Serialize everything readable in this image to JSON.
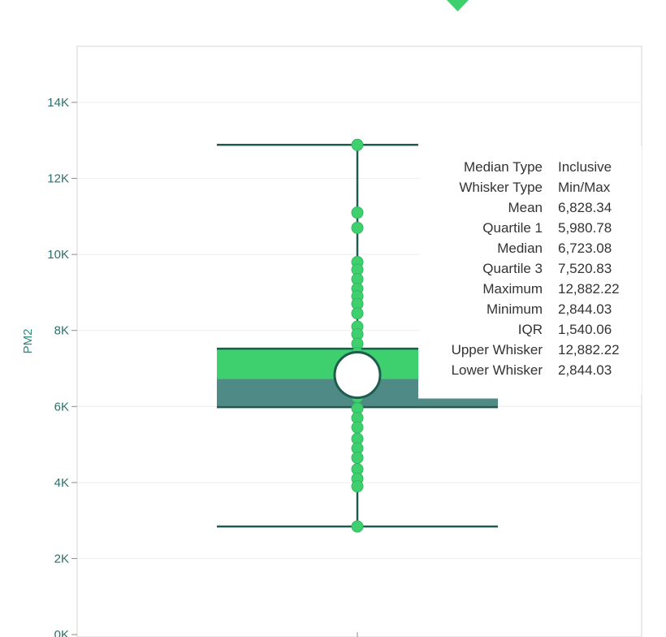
{
  "colors": {
    "accent_green": "#3ecf6e",
    "box_upper": "#3ecf6e",
    "box_lower": "#4f8a86",
    "stroke_dark": "#1f5c4f",
    "axis_text": "#2e6e6a",
    "gridline": "#eeeeee"
  },
  "chart_data": {
    "type": "box",
    "title": "",
    "ylabel": "PM2",
    "xlabel": "",
    "ylim": [
      0,
      15000
    ],
    "y_ticks": [
      0,
      2000,
      4000,
      6000,
      8000,
      10000,
      12000,
      14000
    ],
    "y_tick_labels": [
      "0K",
      "2K",
      "4K",
      "6K",
      "8K",
      "10K",
      "12K",
      "14K"
    ],
    "grid": true,
    "box": {
      "mean": 6828.34,
      "q1": 5980.78,
      "median": 6723.08,
      "q3": 7520.83,
      "max": 12882.22,
      "min": 2844.03,
      "iqr": 1540.06,
      "upper_whisker": 12882.22,
      "lower_whisker": 2844.03
    },
    "points": [
      12882.22,
      11100,
      10700,
      9800,
      9600,
      9350,
      9100,
      8900,
      8700,
      8450,
      8100,
      7900,
      7650,
      7400,
      7200,
      6950,
      6728.34,
      6500,
      6250,
      5950,
      5700,
      5450,
      5150,
      4900,
      4650,
      4350,
      4100,
      3900,
      2844.03
    ],
    "tooltip": {
      "rows": [
        {
          "label": "Median Type",
          "value": "Inclusive"
        },
        {
          "label": "Whisker Type",
          "value": "Min/Max"
        },
        {
          "label": "Mean",
          "value": "6,828.34"
        },
        {
          "label": "Quartile 1",
          "value": "5,980.78"
        },
        {
          "label": "Median",
          "value": "6,723.08"
        },
        {
          "label": "Quartile 3",
          "value": "7,520.83"
        },
        {
          "label": "Maximum",
          "value": "12,882.22"
        },
        {
          "label": "Minimum",
          "value": "2,844.03"
        },
        {
          "label": "IQR",
          "value": "1,540.06"
        },
        {
          "label": "Upper Whisker",
          "value": "12,882.22"
        },
        {
          "label": "Lower Whisker",
          "value": "2,844.03"
        }
      ]
    }
  }
}
